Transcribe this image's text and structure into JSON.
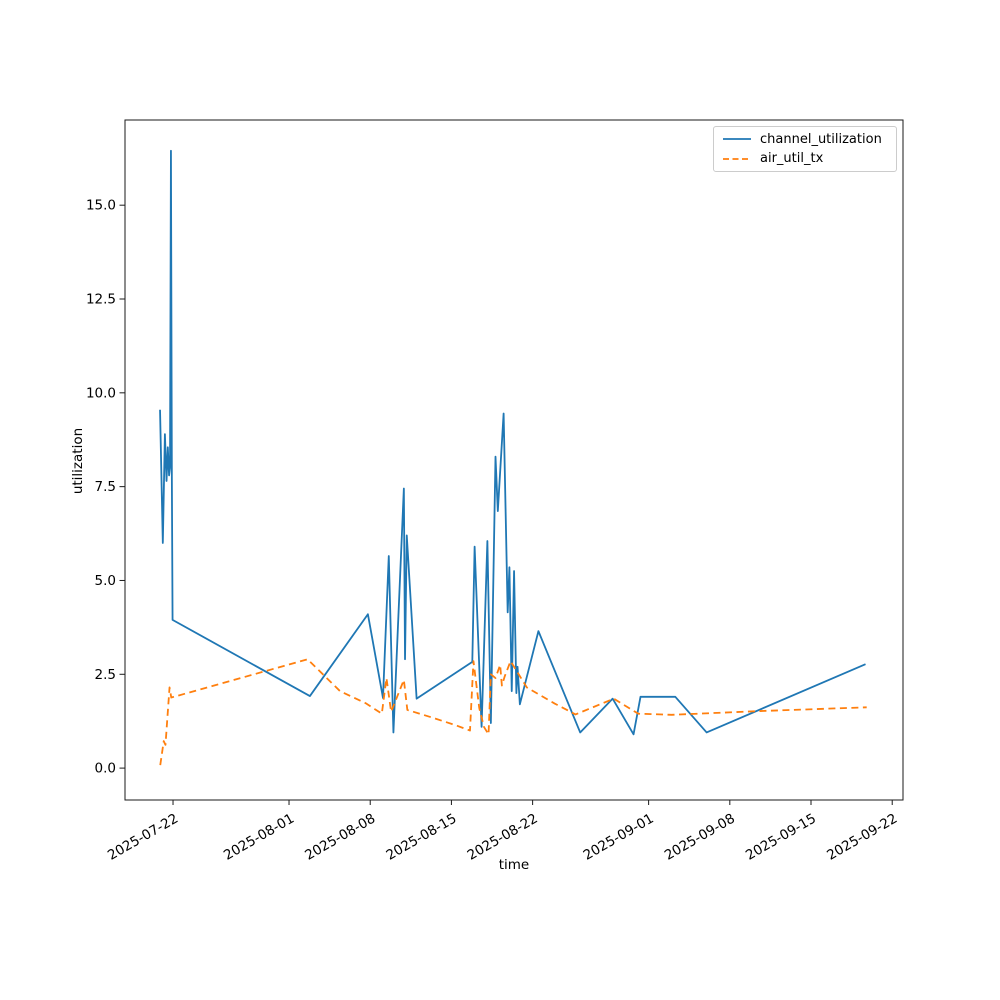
{
  "figure": {
    "background": "#ffffff",
    "spine_color": "#1a1a1a",
    "tick_color": "#1a1a1a",
    "text_color": "#000000"
  },
  "chart_data": {
    "type": "line",
    "title": "",
    "xlabel": "time",
    "ylabel": "utilization",
    "grid": false,
    "legend_position": "upper right",
    "x_axis": {
      "kind": "date",
      "origin_date": "2025-07-22",
      "unit": "days_since_origin",
      "domain": [
        -4.14,
        62.93
      ],
      "ticks": [
        {
          "label": "2025-07-22",
          "d": 0
        },
        {
          "label": "2025-08-01",
          "d": 10
        },
        {
          "label": "2025-08-08",
          "d": 17
        },
        {
          "label": "2025-08-15",
          "d": 24
        },
        {
          "label": "2025-08-22",
          "d": 31
        },
        {
          "label": "2025-09-01",
          "d": 41
        },
        {
          "label": "2025-09-08",
          "d": 48
        },
        {
          "label": "2025-09-15",
          "d": 55
        },
        {
          "label": "2025-09-22",
          "d": 62
        }
      ],
      "tick_rotation_deg": 30
    },
    "y_axis": {
      "domain": [
        -0.85,
        17.27
      ],
      "ticks": [
        0.0,
        2.5,
        5.0,
        7.5,
        10.0,
        12.5,
        15.0
      ]
    },
    "series": [
      {
        "name": "channel_utilization",
        "color": "#1f77b4",
        "style": "solid",
        "points": [
          [
            -1.12,
            9.55
          ],
          [
            -0.88,
            6.0
          ],
          [
            -0.7,
            8.9
          ],
          [
            -0.56,
            7.65
          ],
          [
            -0.45,
            8.55
          ],
          [
            -0.34,
            7.8
          ],
          [
            -0.26,
            8.0
          ],
          [
            -0.18,
            16.45
          ],
          [
            -0.1,
            7.7
          ],
          [
            -0.04,
            3.95
          ],
          [
            11.8,
            1.92
          ],
          [
            16.8,
            4.1
          ],
          [
            18.1,
            1.87
          ],
          [
            18.6,
            5.65
          ],
          [
            19.0,
            0.95
          ],
          [
            19.9,
            7.45
          ],
          [
            20.0,
            2.9
          ],
          [
            20.15,
            6.2
          ],
          [
            21.0,
            1.85
          ],
          [
            25.8,
            2.83
          ],
          [
            26.0,
            5.9
          ],
          [
            26.6,
            1.1
          ],
          [
            27.1,
            6.05
          ],
          [
            27.4,
            1.2
          ],
          [
            27.8,
            8.3
          ],
          [
            28.0,
            6.85
          ],
          [
            28.5,
            9.45
          ],
          [
            28.85,
            4.15
          ],
          [
            29.0,
            5.35
          ],
          [
            29.2,
            2.05
          ],
          [
            29.4,
            5.25
          ],
          [
            29.6,
            2.0
          ],
          [
            29.7,
            2.7
          ],
          [
            29.9,
            1.7
          ],
          [
            31.5,
            3.65
          ],
          [
            35.1,
            0.95
          ],
          [
            37.9,
            1.85
          ],
          [
            39.7,
            0.9
          ],
          [
            40.3,
            1.9
          ],
          [
            43.3,
            1.9
          ],
          [
            46.0,
            0.95
          ],
          [
            59.7,
            2.77
          ]
        ]
      },
      {
        "name": "air_util_tx",
        "color": "#ff7f0e",
        "style": "dashed",
        "points": [
          [
            -1.1,
            0.08
          ],
          [
            -0.8,
            0.72
          ],
          [
            -0.65,
            0.62
          ],
          [
            -0.3,
            2.15
          ],
          [
            -0.15,
            1.88
          ],
          [
            11.6,
            2.9
          ],
          [
            14.4,
            2.05
          ],
          [
            16.6,
            1.73
          ],
          [
            18.0,
            1.45
          ],
          [
            18.4,
            2.4
          ],
          [
            18.8,
            1.5
          ],
          [
            19.9,
            2.35
          ],
          [
            20.2,
            1.55
          ],
          [
            22.2,
            1.36
          ],
          [
            24.3,
            1.15
          ],
          [
            25.6,
            1.0
          ],
          [
            25.9,
            2.85
          ],
          [
            26.4,
            1.6
          ],
          [
            26.8,
            1.1
          ],
          [
            27.2,
            0.9
          ],
          [
            27.4,
            2.5
          ],
          [
            27.8,
            2.4
          ],
          [
            28.2,
            2.75
          ],
          [
            28.35,
            2.2
          ],
          [
            28.6,
            2.45
          ],
          [
            29.1,
            2.85
          ],
          [
            30.5,
            2.15
          ],
          [
            32.9,
            1.72
          ],
          [
            34.7,
            1.43
          ],
          [
            38.0,
            1.85
          ],
          [
            40.1,
            1.45
          ],
          [
            43.0,
            1.42
          ],
          [
            50.6,
            1.52
          ],
          [
            59.8,
            1.62
          ]
        ]
      }
    ]
  }
}
